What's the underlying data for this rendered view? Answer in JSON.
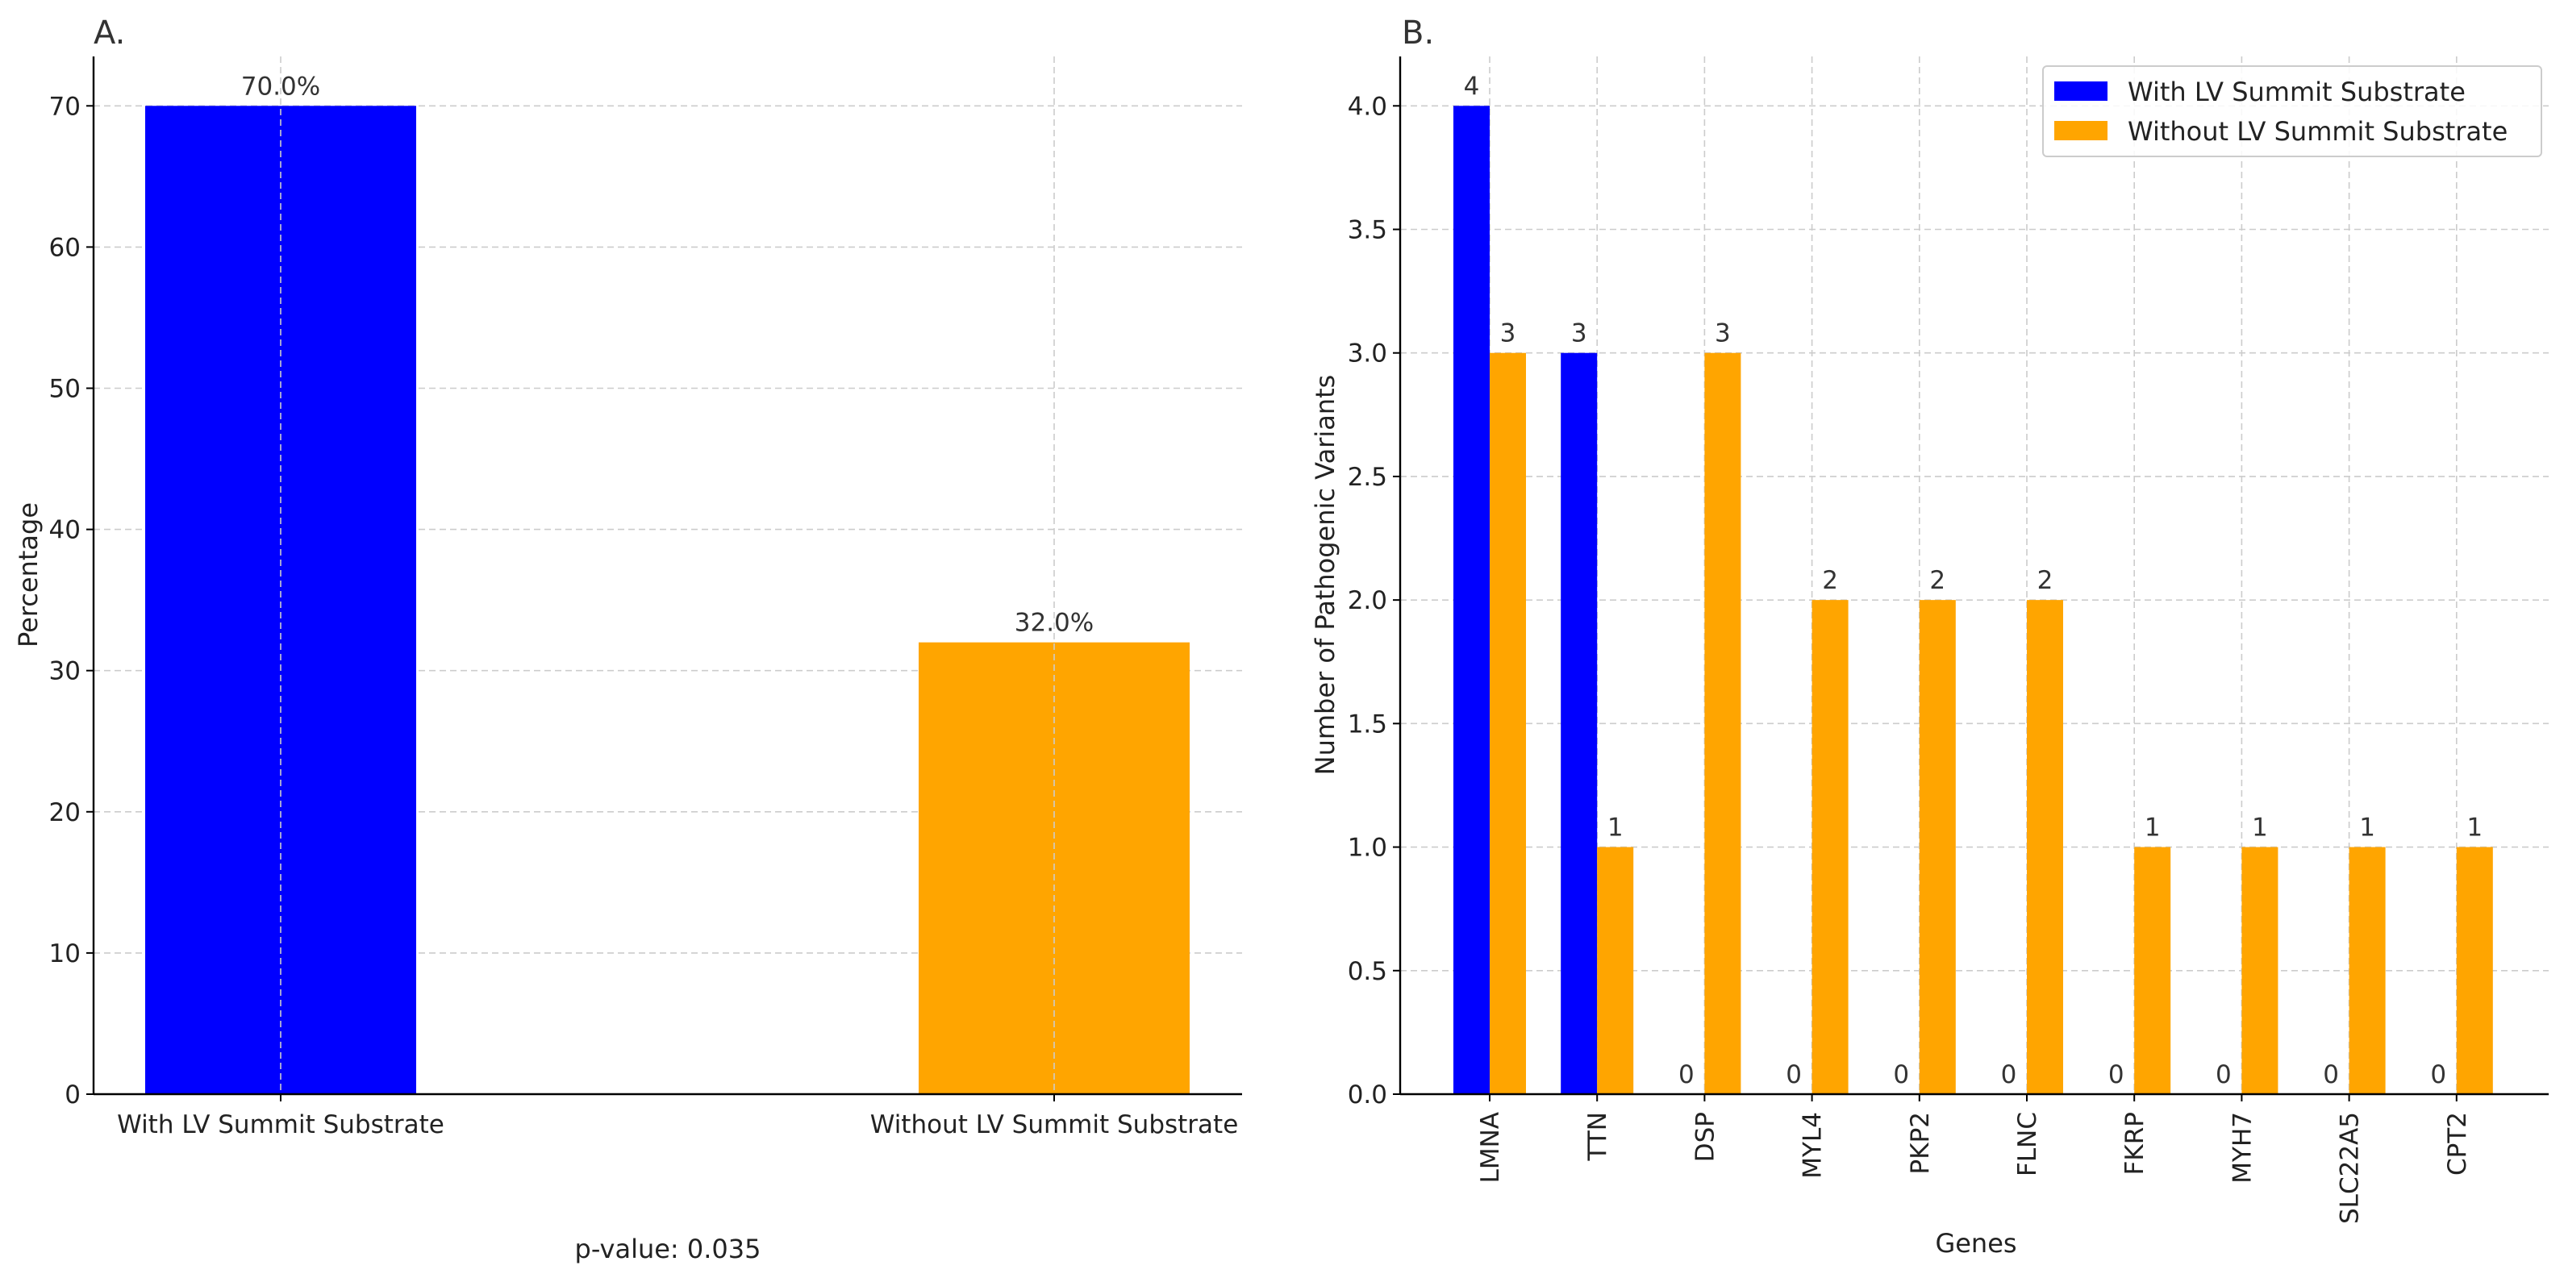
{
  "chart_data": [
    {
      "panel": "A.",
      "type": "bar",
      "categories": [
        "With LV Summit Substrate",
        "Without LV Summit Substrate"
      ],
      "values": [
        70.0,
        32.0
      ],
      "value_labels": [
        "70.0%",
        "32.0%"
      ],
      "colors": [
        "#0000ff",
        "#ffa500"
      ],
      "ylabel": "Percentage",
      "xlabel": "",
      "ylim": [
        0,
        73.5
      ],
      "yticks": [
        0,
        10,
        20,
        30,
        40,
        50,
        60,
        70
      ],
      "grid": true,
      "annotation": "p-value: 0.035"
    },
    {
      "panel": "B.",
      "type": "bar",
      "categories": [
        "LMNA",
        "TTN",
        "DSP",
        "MYL4",
        "PKP2",
        "FLNC",
        "FKRP",
        "MYH7",
        "SLC22A5",
        "CPT2"
      ],
      "series": [
        {
          "name": "With LV Summit Substrate",
          "color": "#0000ff",
          "values": [
            4,
            3,
            0,
            0,
            0,
            0,
            0,
            0,
            0,
            0
          ]
        },
        {
          "name": "Without LV Summit Substrate",
          "color": "#ffa500",
          "values": [
            3,
            1,
            3,
            2,
            2,
            2,
            1,
            1,
            1,
            1
          ]
        }
      ],
      "xlabel": "Genes",
      "ylabel": "Number of Pathogenic Variants",
      "ylim": [
        0,
        4.2
      ],
      "yticks": [
        "0.0",
        "0.5",
        "1.0",
        "1.5",
        "2.0",
        "2.5",
        "3.0",
        "3.5",
        "4.0"
      ],
      "legend_position": "top-right",
      "grid": true
    }
  ]
}
